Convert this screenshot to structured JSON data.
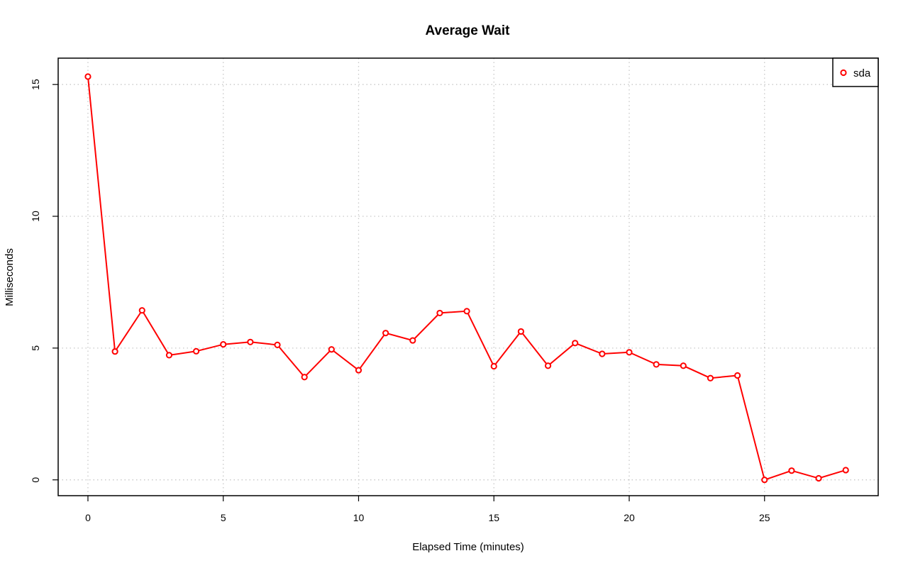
{
  "chart_data": {
    "type": "line",
    "title": "Average Wait",
    "xlabel": "Elapsed Time (minutes)",
    "ylabel": "Milliseconds",
    "xlim": [
      -1.1,
      29.2
    ],
    "ylim": [
      -0.6,
      16.0
    ],
    "x_ticks": [
      0,
      5,
      10,
      15,
      20,
      25
    ],
    "y_ticks": [
      0,
      5,
      10,
      15
    ],
    "grid": true,
    "legend_position": "top-right",
    "series": [
      {
        "name": "sda",
        "color": "#ff0000",
        "x": [
          0,
          1,
          2,
          3,
          4,
          5,
          6,
          7,
          8,
          9,
          10,
          11,
          12,
          13,
          14,
          15,
          16,
          17,
          18,
          19,
          20,
          21,
          22,
          23,
          24,
          25,
          26,
          27,
          28
        ],
        "values": [
          15.3,
          4.87,
          6.43,
          4.73,
          4.88,
          5.14,
          5.23,
          5.12,
          3.9,
          4.95,
          4.16,
          5.57,
          5.29,
          6.33,
          6.4,
          4.31,
          5.63,
          4.33,
          5.19,
          4.78,
          4.84,
          4.38,
          4.33,
          3.86,
          3.96,
          0.0,
          0.35,
          0.06,
          0.37
        ]
      }
    ]
  }
}
